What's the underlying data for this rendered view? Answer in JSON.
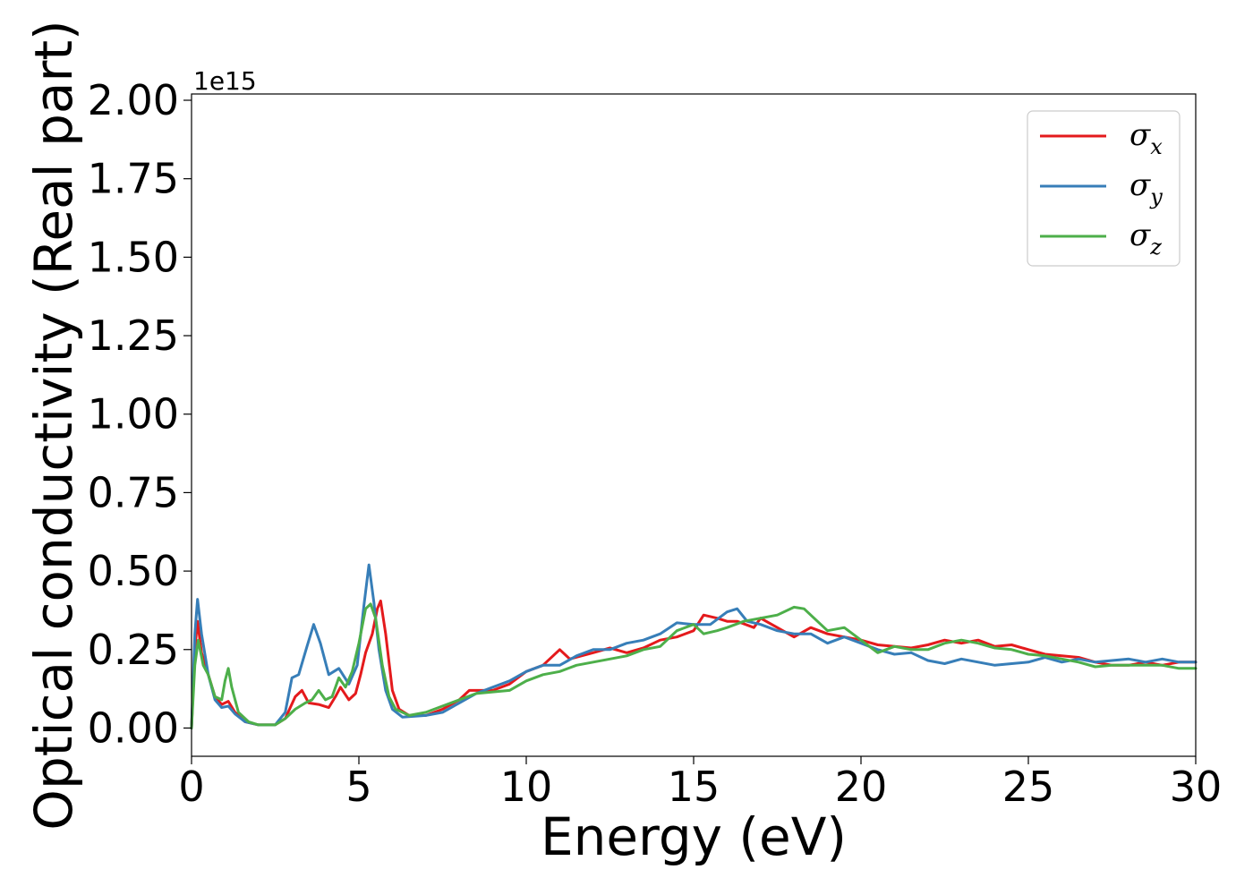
{
  "chart_data": {
    "type": "line",
    "xlabel": "Energy (eV)",
    "ylabel": "Optical conductivity (Real part)",
    "y_offset_label": "1e15",
    "y_scale": 1000000000000000.0,
    "xlim": [
      0,
      30
    ],
    "ylim": [
      -0.09,
      2.02
    ],
    "x_ticks": [
      0,
      5,
      10,
      15,
      20,
      25,
      30
    ],
    "x_tick_labels": [
      "0",
      "5",
      "10",
      "15",
      "20",
      "25",
      "30"
    ],
    "y_ticks": [
      0.0,
      0.25,
      0.5,
      0.75,
      1.0,
      1.25,
      1.5,
      1.75,
      2.0
    ],
    "y_tick_labels": [
      "0.00",
      "0.25",
      "0.50",
      "0.75",
      "1.00",
      "1.25",
      "1.50",
      "1.75",
      "2.00"
    ],
    "grid": false,
    "legend_position": "top-right",
    "series": [
      {
        "name": "σx",
        "legend_symbol": "σ",
        "legend_subscript": "x",
        "color": "#e41a1c",
        "points": [
          [
            0,
            0
          ],
          [
            0.1,
            0.25
          ],
          [
            0.18,
            0.34
          ],
          [
            0.3,
            0.24
          ],
          [
            0.5,
            0.17
          ],
          [
            0.7,
            0.1
          ],
          [
            0.9,
            0.075
          ],
          [
            1.1,
            0.085
          ],
          [
            1.3,
            0.05
          ],
          [
            1.6,
            0.02
          ],
          [
            2,
            0.01
          ],
          [
            2.5,
            0.01
          ],
          [
            2.8,
            0.03
          ],
          [
            3.1,
            0.1
          ],
          [
            3.3,
            0.12
          ],
          [
            3.5,
            0.08
          ],
          [
            3.8,
            0.075
          ],
          [
            4.1,
            0.065
          ],
          [
            4.3,
            0.1
          ],
          [
            4.45,
            0.13
          ],
          [
            4.7,
            0.09
          ],
          [
            4.9,
            0.11
          ],
          [
            5.05,
            0.17
          ],
          [
            5.2,
            0.24
          ],
          [
            5.4,
            0.3
          ],
          [
            5.55,
            0.38
          ],
          [
            5.65,
            0.405
          ],
          [
            5.8,
            0.3
          ],
          [
            6.0,
            0.12
          ],
          [
            6.2,
            0.06
          ],
          [
            6.5,
            0.04
          ],
          [
            7,
            0.04
          ],
          [
            7.5,
            0.06
          ],
          [
            8,
            0.09
          ],
          [
            8.3,
            0.12
          ],
          [
            9,
            0.12
          ],
          [
            9.5,
            0.14
          ],
          [
            10,
            0.18
          ],
          [
            10.5,
            0.2
          ],
          [
            11,
            0.25
          ],
          [
            11.3,
            0.22
          ],
          [
            12,
            0.24
          ],
          [
            12.5,
            0.255
          ],
          [
            13,
            0.24
          ],
          [
            13.5,
            0.255
          ],
          [
            14,
            0.28
          ],
          [
            14.5,
            0.29
          ],
          [
            15,
            0.31
          ],
          [
            15.3,
            0.36
          ],
          [
            15.7,
            0.35
          ],
          [
            16,
            0.34
          ],
          [
            16.3,
            0.34
          ],
          [
            16.8,
            0.32
          ],
          [
            17,
            0.35
          ],
          [
            17.5,
            0.32
          ],
          [
            18,
            0.29
          ],
          [
            18.5,
            0.32
          ],
          [
            19,
            0.3
          ],
          [
            19.5,
            0.29
          ],
          [
            20,
            0.28
          ],
          [
            20.5,
            0.265
          ],
          [
            21,
            0.26
          ],
          [
            21.5,
            0.255
          ],
          [
            22,
            0.265
          ],
          [
            22.5,
            0.28
          ],
          [
            23,
            0.27
          ],
          [
            23.5,
            0.28
          ],
          [
            24,
            0.26
          ],
          [
            24.5,
            0.265
          ],
          [
            25,
            0.25
          ],
          [
            25.5,
            0.235
          ],
          [
            26,
            0.23
          ],
          [
            26.5,
            0.225
          ],
          [
            27,
            0.21
          ],
          [
            27.5,
            0.2
          ],
          [
            28,
            0.2
          ],
          [
            28.5,
            0.21
          ],
          [
            29,
            0.2
          ],
          [
            29.5,
            0.21
          ],
          [
            30,
            0.21
          ]
        ]
      },
      {
        "name": "σy",
        "legend_symbol": "σ",
        "legend_subscript": "y",
        "color": "#377eb8",
        "points": [
          [
            0,
            0
          ],
          [
            0.1,
            0.3
          ],
          [
            0.18,
            0.41
          ],
          [
            0.3,
            0.3
          ],
          [
            0.5,
            0.17
          ],
          [
            0.7,
            0.09
          ],
          [
            0.9,
            0.065
          ],
          [
            1.1,
            0.07
          ],
          [
            1.3,
            0.045
          ],
          [
            1.6,
            0.02
          ],
          [
            2,
            0.01
          ],
          [
            2.5,
            0.01
          ],
          [
            2.8,
            0.05
          ],
          [
            3.0,
            0.16
          ],
          [
            3.2,
            0.17
          ],
          [
            3.45,
            0.26
          ],
          [
            3.65,
            0.33
          ],
          [
            3.85,
            0.27
          ],
          [
            4.1,
            0.17
          ],
          [
            4.4,
            0.19
          ],
          [
            4.7,
            0.14
          ],
          [
            4.95,
            0.2
          ],
          [
            5.15,
            0.39
          ],
          [
            5.3,
            0.52
          ],
          [
            5.45,
            0.4
          ],
          [
            5.6,
            0.25
          ],
          [
            5.8,
            0.12
          ],
          [
            6.0,
            0.06
          ],
          [
            6.3,
            0.035
          ],
          [
            7,
            0.04
          ],
          [
            7.5,
            0.05
          ],
          [
            8,
            0.08
          ],
          [
            8.5,
            0.11
          ],
          [
            9,
            0.13
          ],
          [
            9.5,
            0.15
          ],
          [
            10,
            0.18
          ],
          [
            10.5,
            0.2
          ],
          [
            11,
            0.2
          ],
          [
            11.5,
            0.23
          ],
          [
            12,
            0.25
          ],
          [
            12.5,
            0.25
          ],
          [
            13,
            0.27
          ],
          [
            13.5,
            0.28
          ],
          [
            14,
            0.3
          ],
          [
            14.5,
            0.335
          ],
          [
            15,
            0.33
          ],
          [
            15.5,
            0.33
          ],
          [
            16,
            0.37
          ],
          [
            16.3,
            0.38
          ],
          [
            16.6,
            0.34
          ],
          [
            17,
            0.33
          ],
          [
            17.5,
            0.31
          ],
          [
            18,
            0.3
          ],
          [
            18.5,
            0.3
          ],
          [
            19,
            0.27
          ],
          [
            19.5,
            0.29
          ],
          [
            20,
            0.27
          ],
          [
            20.5,
            0.25
          ],
          [
            21,
            0.235
          ],
          [
            21.5,
            0.24
          ],
          [
            22,
            0.215
          ],
          [
            22.5,
            0.205
          ],
          [
            23,
            0.22
          ],
          [
            23.5,
            0.21
          ],
          [
            24,
            0.2
          ],
          [
            24.5,
            0.205
          ],
          [
            25,
            0.21
          ],
          [
            25.5,
            0.225
          ],
          [
            26,
            0.21
          ],
          [
            26.5,
            0.22
          ],
          [
            27,
            0.21
          ],
          [
            27.5,
            0.215
          ],
          [
            28,
            0.22
          ],
          [
            28.5,
            0.21
          ],
          [
            29,
            0.22
          ],
          [
            29.5,
            0.21
          ],
          [
            30,
            0.21
          ]
        ]
      },
      {
        "name": "σz",
        "legend_symbol": "σ",
        "legend_subscript": "z",
        "color": "#4daf4a",
        "points": [
          [
            0,
            0
          ],
          [
            0.1,
            0.2
          ],
          [
            0.2,
            0.28
          ],
          [
            0.35,
            0.2
          ],
          [
            0.5,
            0.17
          ],
          [
            0.7,
            0.1
          ],
          [
            0.9,
            0.09
          ],
          [
            1.0,
            0.15
          ],
          [
            1.1,
            0.19
          ],
          [
            1.2,
            0.13
          ],
          [
            1.4,
            0.05
          ],
          [
            1.7,
            0.02
          ],
          [
            2,
            0.01
          ],
          [
            2.5,
            0.01
          ],
          [
            2.8,
            0.03
          ],
          [
            3.1,
            0.06
          ],
          [
            3.4,
            0.08
          ],
          [
            3.6,
            0.09
          ],
          [
            3.8,
            0.12
          ],
          [
            4.0,
            0.09
          ],
          [
            4.2,
            0.1
          ],
          [
            4.4,
            0.16
          ],
          [
            4.6,
            0.13
          ],
          [
            4.8,
            0.18
          ],
          [
            5.0,
            0.27
          ],
          [
            5.2,
            0.38
          ],
          [
            5.35,
            0.395
          ],
          [
            5.5,
            0.35
          ],
          [
            5.7,
            0.2
          ],
          [
            5.9,
            0.1
          ],
          [
            6.1,
            0.06
          ],
          [
            6.5,
            0.04
          ],
          [
            7,
            0.05
          ],
          [
            7.5,
            0.07
          ],
          [
            8,
            0.09
          ],
          [
            8.5,
            0.11
          ],
          [
            9,
            0.115
          ],
          [
            9.5,
            0.12
          ],
          [
            10,
            0.15
          ],
          [
            10.5,
            0.17
          ],
          [
            11,
            0.18
          ],
          [
            11.5,
            0.2
          ],
          [
            12,
            0.21
          ],
          [
            12.5,
            0.22
          ],
          [
            13,
            0.23
          ],
          [
            13.5,
            0.25
          ],
          [
            14,
            0.26
          ],
          [
            14.5,
            0.31
          ],
          [
            15,
            0.33
          ],
          [
            15.3,
            0.3
          ],
          [
            15.7,
            0.31
          ],
          [
            16,
            0.32
          ],
          [
            16.5,
            0.34
          ],
          [
            17,
            0.35
          ],
          [
            17.5,
            0.36
          ],
          [
            18,
            0.385
          ],
          [
            18.3,
            0.38
          ],
          [
            18.6,
            0.35
          ],
          [
            19,
            0.31
          ],
          [
            19.5,
            0.32
          ],
          [
            20,
            0.28
          ],
          [
            20.5,
            0.24
          ],
          [
            21,
            0.26
          ],
          [
            21.5,
            0.25
          ],
          [
            22,
            0.25
          ],
          [
            22.5,
            0.27
          ],
          [
            23,
            0.28
          ],
          [
            23.5,
            0.27
          ],
          [
            24,
            0.255
          ],
          [
            24.5,
            0.25
          ],
          [
            25,
            0.235
          ],
          [
            25.5,
            0.23
          ],
          [
            26,
            0.22
          ],
          [
            26.5,
            0.21
          ],
          [
            27,
            0.195
          ],
          [
            27.5,
            0.2
          ],
          [
            28,
            0.2
          ],
          [
            28.5,
            0.2
          ],
          [
            29,
            0.2
          ],
          [
            29.5,
            0.19
          ],
          [
            30,
            0.19
          ]
        ]
      }
    ]
  }
}
